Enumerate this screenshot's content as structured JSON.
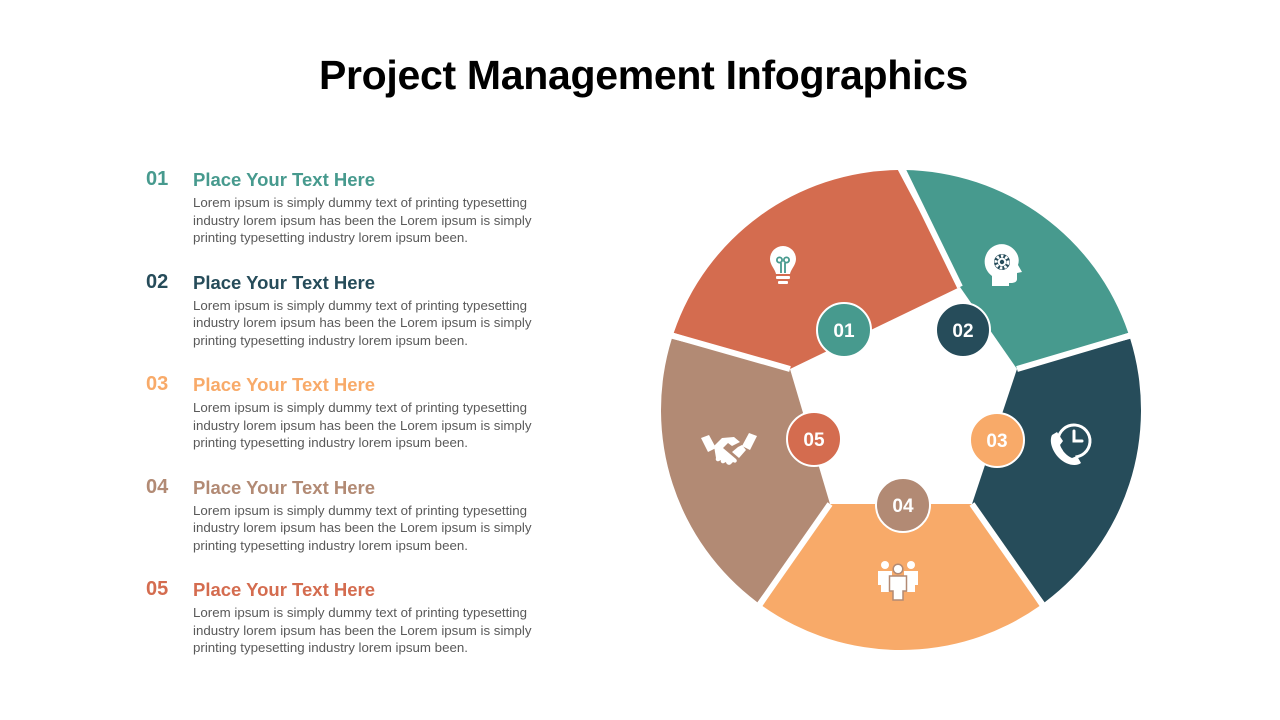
{
  "title": "Project Management Infographics",
  "items": [
    {
      "num": "01",
      "heading": "Place Your Text Here",
      "body": "Lorem ipsum is simply dummy text of printing typesetting industry lorem ipsum has been the Lorem ipsum is simply printing typesetting industry lorem ipsum been.",
      "color": "#479a8e",
      "icon": "lightbulb-icon"
    },
    {
      "num": "02",
      "heading": "Place Your Text Here",
      "body": "Lorem ipsum is simply dummy text of printing typesetting industry lorem ipsum has been the Lorem ipsum is simply printing typesetting industry lorem ipsum been.",
      "color": "#264c5a",
      "icon": "head-gear-icon"
    },
    {
      "num": "03",
      "heading": "Place Your Text Here",
      "body": "Lorem ipsum is simply dummy text of printing typesetting industry lorem ipsum has been the Lorem ipsum is simply printing typesetting industry lorem ipsum been.",
      "color": "#f8aa69",
      "icon": "phone-clock-icon"
    },
    {
      "num": "04",
      "heading": "Place Your Text Here",
      "body": "Lorem ipsum is simply dummy text of printing typesetting industry lorem ipsum has been the Lorem ipsum is simply printing typesetting industry lorem ipsum been.",
      "color": "#b28a74",
      "icon": "team-icon"
    },
    {
      "num": "05",
      "heading": "Place Your Text Here",
      "body": "Lorem ipsum is simply dummy text of printing typesetting industry lorem ipsum has been the Lorem ipsum is simply printing typesetting industry lorem ipsum been.",
      "color": "#d46c4f",
      "icon": "handshake-icon"
    }
  ]
}
